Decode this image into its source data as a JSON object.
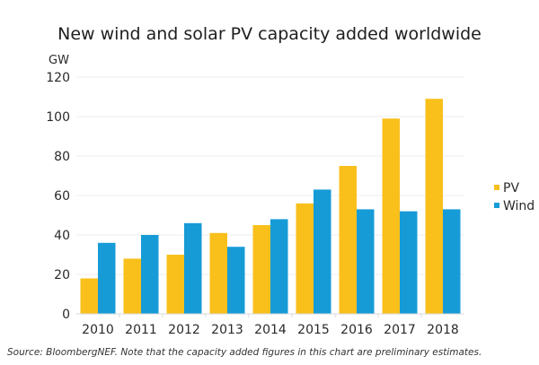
{
  "chart_data": {
    "type": "bar",
    "title": "New wind and solar PV capacity added worldwide",
    "ylabel": "GW",
    "xlabel": "",
    "ylim": [
      0,
      120
    ],
    "yticks": [
      0,
      20,
      40,
      60,
      80,
      100,
      120
    ],
    "grid": true,
    "legend_position": "right",
    "categories": [
      "2010",
      "2011",
      "2012",
      "2013",
      "2014",
      "2015",
      "2016",
      "2017",
      "2018"
    ],
    "series": [
      {
        "name": "PV",
        "color": "#F9C01C",
        "values": [
          18,
          28,
          30,
          41,
          45,
          56,
          75,
          99,
          109
        ]
      },
      {
        "name": "Wind",
        "color": "#169BD7",
        "values": [
          36,
          40,
          46,
          34,
          48,
          63,
          53,
          52,
          53
        ]
      }
    ],
    "source_note": "Source: BloombergNEF. Note that the capacity added figures in this chart are preliminary estimates."
  }
}
